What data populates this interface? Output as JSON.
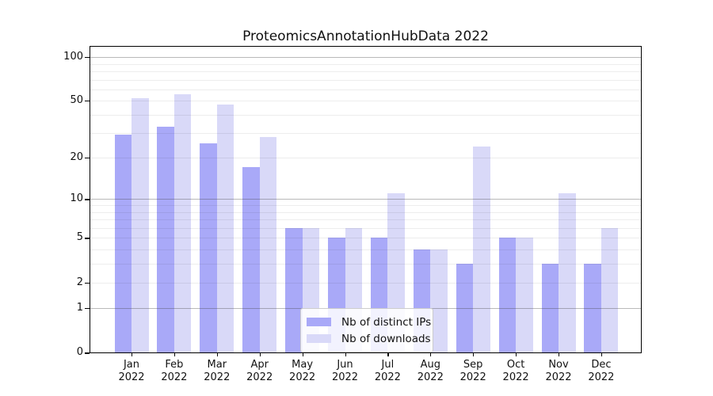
{
  "title": "ProteomicsAnnotationHubData 2022",
  "colors": {
    "distinct_ips": "#a9a9f8",
    "downloads": "#d9d9f8",
    "spine": "#000000",
    "grid_minor": "rgba(0,0,0,0.07)",
    "grid_major": "rgba(70,70,70,0.38)",
    "text": "#111111",
    "legend_border": "#cccccc",
    "background": "#ffffff"
  },
  "y_axis": {
    "scale": "log1p",
    "tick_labels": [
      "100",
      "50",
      "20",
      "10",
      "5",
      "2",
      "1",
      "0"
    ],
    "tick_values": [
      100,
      50,
      20,
      10,
      5,
      2,
      1,
      0
    ],
    "minor_grid_values": [
      2,
      3,
      4,
      5,
      6,
      7,
      8,
      9,
      20,
      30,
      40,
      50,
      60,
      70,
      80,
      90
    ],
    "major_grid_values": [
      1,
      10,
      100
    ]
  },
  "x_axis": {
    "months": [
      "Jan",
      "Feb",
      "Mar",
      "Apr",
      "May",
      "Jun",
      "Jul",
      "Aug",
      "Sep",
      "Oct",
      "Nov",
      "Dec"
    ],
    "year": "2022"
  },
  "legend": {
    "entries": [
      {
        "label": "Nb of distinct IPs",
        "color_key": "distinct_ips"
      },
      {
        "label": "Nb of downloads",
        "color_key": "downloads"
      }
    ],
    "position": "lower center"
  },
  "chart_data": {
    "type": "bar",
    "title": "ProteomicsAnnotationHubData 2022",
    "categories": [
      "Jan 2022",
      "Feb 2022",
      "Mar 2022",
      "Apr 2022",
      "May 2022",
      "Jun 2022",
      "Jul 2022",
      "Aug 2022",
      "Sep 2022",
      "Oct 2022",
      "Nov 2022",
      "Dec 2022"
    ],
    "series": [
      {
        "name": "Nb of distinct IPs",
        "color_key": "distinct_ips",
        "values": [
          29,
          33,
          25,
          17,
          6,
          5,
          5,
          4,
          3,
          5,
          3,
          3
        ]
      },
      {
        "name": "Nb of downloads",
        "color_key": "downloads",
        "values": [
          52,
          55,
          47,
          28,
          6,
          6,
          11,
          4,
          24,
          5,
          11,
          6
        ]
      }
    ],
    "xlabel": "",
    "ylabel": "",
    "yscale": "log1p",
    "yticks": [
      0,
      1,
      2,
      5,
      10,
      20,
      50,
      100
    ],
    "ylim": [
      0,
      113
    ],
    "grid": true,
    "legend_position": "lower center"
  }
}
